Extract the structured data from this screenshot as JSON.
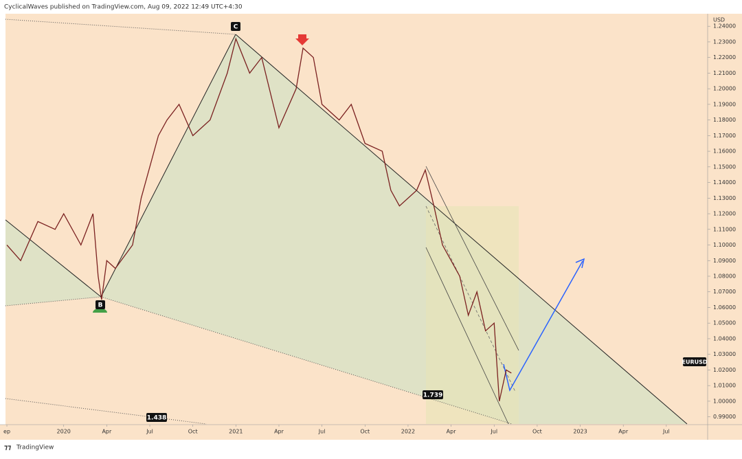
{
  "header": "CyclicalWaves published on TradingView.com, Aug 09, 2022 12:49 UTC+4:30",
  "footer": "TradingView",
  "chart_data": {
    "type": "line",
    "symbol": "EURUSD",
    "currency": "USD",
    "color": "#7a2020",
    "grid": false,
    "annotations": {
      "point_b": "B",
      "point_c": "C",
      "fib_1": "1.739",
      "fib_2": "1.438"
    },
    "x": [
      2019.67,
      2019.75,
      2019.85,
      2019.95,
      2020.0,
      2020.1,
      2020.17,
      2020.2,
      2020.22,
      2020.25,
      2020.3,
      2020.4,
      2020.45,
      2020.55,
      2020.6,
      2020.67,
      2020.75,
      2020.85,
      2020.95,
      2021.0,
      2021.08,
      2021.15,
      2021.25,
      2021.35,
      2021.39,
      2021.45,
      2021.5,
      2021.6,
      2021.67,
      2021.75,
      2021.85,
      2021.9,
      2021.95,
      2022.05,
      2022.1,
      2022.15,
      2022.2,
      2022.3,
      2022.35,
      2022.4,
      2022.45,
      2022.5,
      2022.53,
      2022.57,
      2022.6
    ],
    "values": [
      1.1,
      1.09,
      1.115,
      1.11,
      1.12,
      1.1,
      1.12,
      1.08,
      1.065,
      1.09,
      1.085,
      1.1,
      1.13,
      1.17,
      1.18,
      1.19,
      1.17,
      1.18,
      1.21,
      1.232,
      1.21,
      1.22,
      1.175,
      1.2,
      1.226,
      1.22,
      1.19,
      1.18,
      1.19,
      1.165,
      1.16,
      1.135,
      1.125,
      1.135,
      1.148,
      1.125,
      1.1,
      1.08,
      1.055,
      1.07,
      1.045,
      1.05,
      1.0,
      1.02,
      1.018
    ],
    "xlim": [
      2019.63,
      2023.74
    ],
    "ylim": [
      0.985,
      1.248
    ],
    "xticks": [
      {
        "value": 2019.67,
        "label": "ep"
      },
      {
        "value": 2020,
        "label": "2020"
      },
      {
        "value": 2020.25,
        "label": "Apr"
      },
      {
        "value": 2020.5,
        "label": "Jul"
      },
      {
        "value": 2020.75,
        "label": "Oct"
      },
      {
        "value": 2021,
        "label": "2021"
      },
      {
        "value": 2021.25,
        "label": "Apr"
      },
      {
        "value": 2021.5,
        "label": "Jul"
      },
      {
        "value": 2021.75,
        "label": "Oct"
      },
      {
        "value": 2022,
        "label": "2022"
      },
      {
        "value": 2022.25,
        "label": "Apr"
      },
      {
        "value": 2022.5,
        "label": "Jul"
      },
      {
        "value": 2022.75,
        "label": "Oct"
      },
      {
        "value": 2023,
        "label": "2023"
      },
      {
        "value": 2023.25,
        "label": "Apr"
      },
      {
        "value": 2023.5,
        "label": "Jul"
      }
    ],
    "yticks": [
      {
        "value": 0.99,
        "label": "0.99000"
      },
      {
        "value": 1.0,
        "label": "1.00000"
      },
      {
        "value": 1.01,
        "label": "1.01000"
      },
      {
        "value": 1.02,
        "label": "1.02000"
      },
      {
        "value": 1.03,
        "label": "1.03000"
      },
      {
        "value": 1.04,
        "label": "1.04000"
      },
      {
        "value": 1.05,
        "label": "1.05000"
      },
      {
        "value": 1.06,
        "label": "1.06000"
      },
      {
        "value": 1.07,
        "label": "1.07000"
      },
      {
        "value": 1.08,
        "label": "1.08000"
      },
      {
        "value": 1.09,
        "label": "1.09000"
      },
      {
        "value": 1.1,
        "label": "1.10000"
      },
      {
        "value": 1.11,
        "label": "1.11000"
      },
      {
        "value": 1.12,
        "label": "1.12000"
      },
      {
        "value": 1.13,
        "label": "1.13000"
      },
      {
        "value": 1.14,
        "label": "1.14000"
      },
      {
        "value": 1.15,
        "label": "1.15000"
      },
      {
        "value": 1.16,
        "label": "1.16000"
      },
      {
        "value": 1.17,
        "label": "1.17000"
      },
      {
        "value": 1.18,
        "label": "1.18000"
      },
      {
        "value": 1.19,
        "label": "1.19000"
      },
      {
        "value": 1.2,
        "label": "1.20000"
      },
      {
        "value": 1.21,
        "label": "1.21000"
      },
      {
        "value": 1.22,
        "label": "1.22000"
      },
      {
        "value": 1.23,
        "label": "1.23000"
      },
      {
        "value": 1.24,
        "label": "1.24000"
      }
    ]
  }
}
